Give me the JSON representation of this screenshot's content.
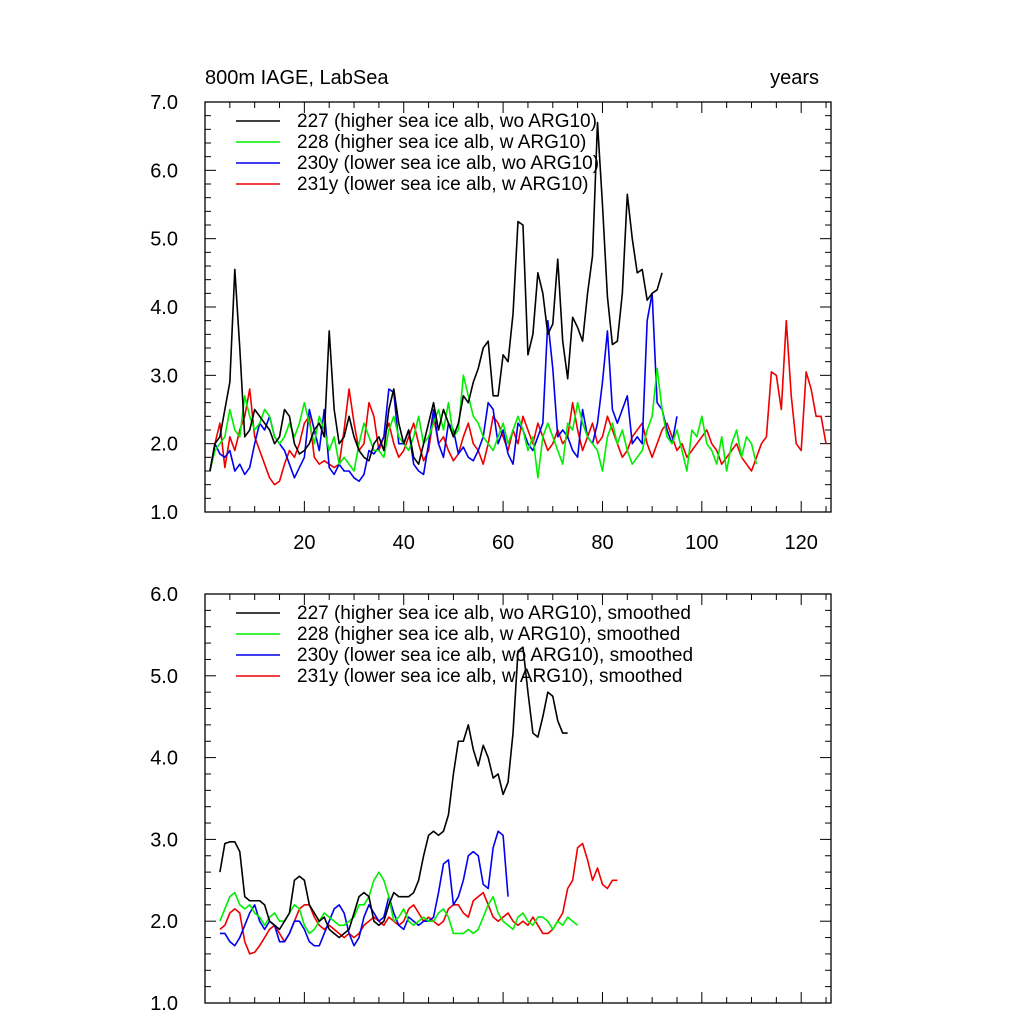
{
  "chart_data": [
    {
      "type": "line",
      "title": "800m IAGE, LabSea",
      "subtitle": "years",
      "xlabel": "",
      "ylabel": "",
      "xlim": [
        0,
        126
      ],
      "ylim": [
        1.0,
        7.0
      ],
      "x_ticks": [
        20,
        40,
        60,
        80,
        100,
        120
      ],
      "x_tick_labels": [
        "20",
        "40",
        "60",
        "80",
        "100",
        "120"
      ],
      "y_ticks": [
        1.0,
        2.0,
        3.0,
        4.0,
        5.0,
        6.0,
        7.0
      ],
      "y_tick_labels": [
        "1.0",
        "2.0",
        "3.0",
        "4.0",
        "5.0",
        "6.0",
        "7.0"
      ],
      "grid": false,
      "legend_position": "top-left",
      "series": [
        {
          "name": "227 (higher sea ice alb, wo ARG10)",
          "color": "#000000",
          "x_start": 1,
          "values": [
            1.6,
            2.0,
            2.1,
            2.5,
            2.9,
            4.55,
            3.4,
            2.1,
            2.2,
            2.5,
            2.4,
            2.3,
            2.2,
            2.0,
            2.1,
            2.5,
            2.4,
            2.0,
            1.85,
            1.9,
            2.0,
            2.2,
            2.3,
            2.1,
            3.65,
            2.5,
            2.0,
            2.1,
            2.4,
            2.1,
            1.9,
            1.8,
            1.75,
            2.0,
            2.1,
            1.9,
            2.5,
            2.8,
            2.3,
            2.0,
            2.2,
            1.8,
            1.7,
            2.0,
            2.3,
            2.6,
            2.2,
            2.5,
            2.3,
            2.1,
            2.3,
            2.7,
            2.6,
            2.9,
            3.1,
            3.4,
            3.5,
            2.7,
            2.7,
            3.3,
            3.2,
            3.9,
            5.25,
            5.2,
            3.3,
            3.6,
            4.5,
            4.2,
            3.6,
            3.75,
            4.7,
            3.5,
            2.95,
            3.85,
            3.7,
            3.5,
            4.2,
            4.75,
            6.7,
            5.5,
            4.15,
            3.45,
            3.5,
            4.2,
            5.65,
            5.0,
            4.5,
            4.55,
            4.1,
            4.2,
            4.25,
            4.5
          ]
        },
        {
          "name": "228 (higher sea ice alb, w ARG10)",
          "color": "#00ee00",
          "x_start": 1,
          "values": [
            1.6,
            1.9,
            2.0,
            2.1,
            2.5,
            2.2,
            2.1,
            2.7,
            2.4,
            2.2,
            2.3,
            2.5,
            2.4,
            2.1,
            2.0,
            2.1,
            2.3,
            2.1,
            2.3,
            2.6,
            2.3,
            2.0,
            2.4,
            2.2,
            1.9,
            2.1,
            1.7,
            1.8,
            1.7,
            1.6,
            2.0,
            2.3,
            2.1,
            1.9,
            1.9,
            1.8,
            2.2,
            2.4,
            2.1,
            2.0,
            1.9,
            2.1,
            2.4,
            2.0,
            2.1,
            2.3,
            2.5,
            2.2,
            2.6,
            2.1,
            2.2,
            3.0,
            2.7,
            2.4,
            2.3,
            2.1,
            2.0,
            1.9,
            2.1,
            2.3,
            2.0,
            2.2,
            2.4,
            2.2,
            1.9,
            2.1,
            1.5,
            2.1,
            2.3,
            2.1,
            1.9,
            1.7,
            2.3,
            2.2,
            2.6,
            2.3,
            2.1,
            2.0,
            1.9,
            1.6,
            2.1,
            2.3,
            2.0,
            2.2,
            1.9,
            1.7,
            1.8,
            1.9,
            2.2,
            2.4,
            3.1,
            2.5,
            2.1,
            2.0,
            2.2,
            1.9,
            1.6,
            2.2,
            2.1,
            2.4,
            2.0,
            1.9,
            1.7,
            2.1,
            1.6,
            2.0,
            2.2,
            1.8,
            2.1,
            2.0,
            1.7
          ]
        },
        {
          "name": "230y (lower sea ice alb, wo ARG10)",
          "color": "#0000ee",
          "x_start": 1,
          "values": [
            1.6,
            2.0,
            1.85,
            1.8,
            1.9,
            1.6,
            1.7,
            1.55,
            1.65,
            2.0,
            2.3,
            2.2,
            2.4,
            2.1,
            2.0,
            1.9,
            1.7,
            1.5,
            1.65,
            1.8,
            2.5,
            2.2,
            1.9,
            2.5,
            1.65,
            1.55,
            1.7,
            1.6,
            1.6,
            1.5,
            1.45,
            1.55,
            1.9,
            1.85,
            1.95,
            2.1,
            2.8,
            2.75,
            2.0,
            2.0,
            2.2,
            1.7,
            1.6,
            1.55,
            2.0,
            2.5,
            2.0,
            1.8,
            2.3,
            2.2,
            1.85,
            1.95,
            1.8,
            1.75,
            1.9,
            2.1,
            2.6,
            2.5,
            2.0,
            2.2,
            1.85,
            1.7,
            2.3,
            2.2,
            2.0,
            1.9,
            2.1,
            2.3,
            3.8,
            3.1,
            2.1,
            2.2,
            2.1,
            1.9,
            1.8,
            2.5,
            2.1,
            2.0,
            2.3,
            2.9,
            3.65,
            2.5,
            2.3,
            2.5,
            2.7,
            2.0,
            2.1,
            2.0,
            3.8,
            4.2,
            2.6,
            2.5,
            2.2,
            2.0,
            2.4
          ]
        },
        {
          "name": "231y (lower sea ice alb, w ARG10)",
          "color": "#ee0000",
          "x_start": 1,
          "values": [
            1.6,
            2.0,
            2.3,
            1.65,
            2.1,
            1.9,
            2.2,
            2.4,
            2.8,
            2.1,
            1.9,
            1.7,
            1.5,
            1.4,
            1.45,
            1.7,
            1.9,
            1.8,
            2.0,
            2.3,
            2.4,
            1.8,
            1.7,
            1.75,
            1.7,
            1.65,
            1.7,
            2.2,
            2.8,
            2.3,
            1.9,
            2.0,
            2.6,
            2.4,
            1.9,
            2.1,
            2.3,
            2.0,
            1.8,
            1.9,
            2.1,
            2.3,
            2.0,
            1.75,
            1.9,
            2.4,
            2.0,
            2.1,
            1.9,
            1.75,
            1.85,
            2.1,
            2.3,
            2.0,
            1.9,
            1.7,
            2.0,
            2.4,
            2.3,
            2.1,
            1.9,
            2.2,
            2.0,
            2.4,
            2.2,
            2.0,
            2.3,
            2.1,
            1.9,
            2.0,
            2.2,
            2.0,
            2.1,
            2.6,
            2.2,
            1.9,
            2.1,
            2.3,
            2.0,
            2.1,
            2.4,
            2.2,
            2.0,
            1.8,
            1.9,
            2.1,
            2.2,
            2.3,
            2.0,
            1.8,
            2.0,
            2.2,
            2.3,
            2.1,
            1.9,
            2.0,
            1.8,
            1.9,
            2.0,
            2.1,
            2.2,
            2.0,
            1.9,
            1.7,
            1.8,
            1.9,
            2.0,
            1.8,
            1.7,
            1.6,
            1.8,
            2.0,
            2.1,
            3.05,
            3.0,
            2.5,
            3.8,
            2.7,
            2.0,
            1.9,
            3.05,
            2.8,
            2.4,
            2.4,
            2.0
          ]
        }
      ]
    },
    {
      "type": "line",
      "title": "",
      "xlabel": "",
      "ylabel": "",
      "xlim": [
        0,
        126
      ],
      "ylim": [
        1.0,
        6.0
      ],
      "x_ticks": [
        20,
        40,
        60,
        80,
        100,
        120
      ],
      "x_tick_labels": [],
      "y_ticks": [
        1.0,
        2.0,
        3.0,
        4.0,
        5.0,
        6.0
      ],
      "y_tick_labels": [
        "1.0",
        "2.0",
        "3.0",
        "4.0",
        "5.0",
        "6.0"
      ],
      "grid": false,
      "legend_position": "top-left",
      "series": [
        {
          "name": "227 (higher sea ice alb, wo ARG10), smoothed",
          "color": "#000000",
          "x_start": 3,
          "values": [
            2.6,
            2.95,
            2.97,
            2.97,
            2.85,
            2.3,
            2.25,
            2.25,
            2.25,
            2.2,
            2.0,
            1.95,
            1.9,
            2.0,
            2.1,
            2.5,
            2.55,
            2.5,
            2.2,
            2.1,
            2.0,
            2.05,
            1.9,
            1.85,
            1.8,
            1.85,
            1.9,
            2.1,
            2.3,
            2.35,
            2.3,
            2.0,
            1.95,
            2.0,
            2.2,
            2.35,
            2.3,
            2.3,
            2.3,
            2.35,
            2.5,
            2.8,
            3.05,
            3.1,
            3.05,
            3.1,
            3.3,
            3.8,
            4.2,
            4.2,
            4.4,
            4.1,
            3.9,
            4.15,
            4.0,
            3.75,
            3.8,
            3.55,
            3.7,
            4.3,
            5.3,
            5.35,
            4.8,
            4.3,
            4.25,
            4.5,
            4.8,
            4.75,
            4.45,
            4.3,
            4.3
          ]
        },
        {
          "name": "228 (higher sea ice alb, w ARG10), smoothed",
          "color": "#00ee00",
          "x_start": 3,
          "values": [
            2.0,
            2.15,
            2.3,
            2.35,
            2.2,
            2.15,
            2.2,
            2.1,
            2.05,
            1.95,
            2.05,
            2.1,
            2.0,
            2.0,
            2.1,
            2.2,
            2.15,
            1.95,
            1.85,
            1.9,
            2.0,
            2.1,
            2.05,
            2.0,
            1.95,
            1.95,
            2.0,
            2.05,
            2.2,
            2.2,
            2.3,
            2.5,
            2.6,
            2.5,
            2.3,
            2.0,
            2.05,
            2.15,
            2.0,
            1.95,
            2.0,
            2.05,
            2.0,
            2.0,
            2.1,
            2.15,
            2.05,
            1.85,
            1.85,
            1.85,
            1.9,
            1.85,
            1.9,
            2.05,
            2.2,
            2.3,
            2.1,
            2.0,
            1.95,
            1.9,
            2.05,
            2.1,
            2.0,
            1.95,
            2.05,
            2.05,
            2.0,
            1.9,
            2.0,
            1.95,
            2.05,
            2.0,
            1.95
          ]
        },
        {
          "name": "230y (lower sea ice alb, wo ARG10), smoothed",
          "color": "#0000ee",
          "x_start": 3,
          "values": [
            1.85,
            1.85,
            1.75,
            1.7,
            1.8,
            1.95,
            2.1,
            2.2,
            2.0,
            1.9,
            2.0,
            1.95,
            1.75,
            1.75,
            1.85,
            2.0,
            2.0,
            1.9,
            1.75,
            1.7,
            1.7,
            1.85,
            2.0,
            2.15,
            2.2,
            2.1,
            1.85,
            1.7,
            1.8,
            2.05,
            2.2,
            2.1,
            2.0,
            2.05,
            2.3,
            2.1,
            1.95,
            1.9,
            2.05,
            2.0,
            1.95,
            2.0,
            2.0,
            2.05,
            2.35,
            2.7,
            2.75,
            2.2,
            2.3,
            2.5,
            2.8,
            2.85,
            2.8,
            2.45,
            2.4,
            2.9,
            3.1,
            3.05,
            2.3
          ]
        },
        {
          "name": "231y (lower sea ice alb, w ARG10), smoothed",
          "color": "#ee0000",
          "x_start": 3,
          "values": [
            1.9,
            1.95,
            2.1,
            2.15,
            2.1,
            1.75,
            1.6,
            1.62,
            1.7,
            1.8,
            1.9,
            1.95,
            1.85,
            1.75,
            1.85,
            2.0,
            2.15,
            2.2,
            2.2,
            2.05,
            1.95,
            1.9,
            1.95,
            1.9,
            1.85,
            1.8,
            1.85,
            1.8,
            1.85,
            1.95,
            2.0,
            2.05,
            2.0,
            1.95,
            2.05,
            2.0,
            1.95,
            2.0,
            2.15,
            2.2,
            2.1,
            2.0,
            2.05,
            2.0,
            1.95,
            2.0,
            2.15,
            2.2,
            2.2,
            2.1,
            2.05,
            2.25,
            2.3,
            2.35,
            2.2,
            2.05,
            2.0,
            2.05,
            2.1,
            2.0,
            1.95,
            2.0,
            1.95,
            2.05,
            1.95,
            1.85,
            1.85,
            1.9,
            2.0,
            2.1,
            2.4,
            2.5,
            2.9,
            2.95,
            2.75,
            2.5,
            2.65,
            2.45,
            2.4,
            2.5,
            2.5
          ]
        }
      ]
    }
  ]
}
